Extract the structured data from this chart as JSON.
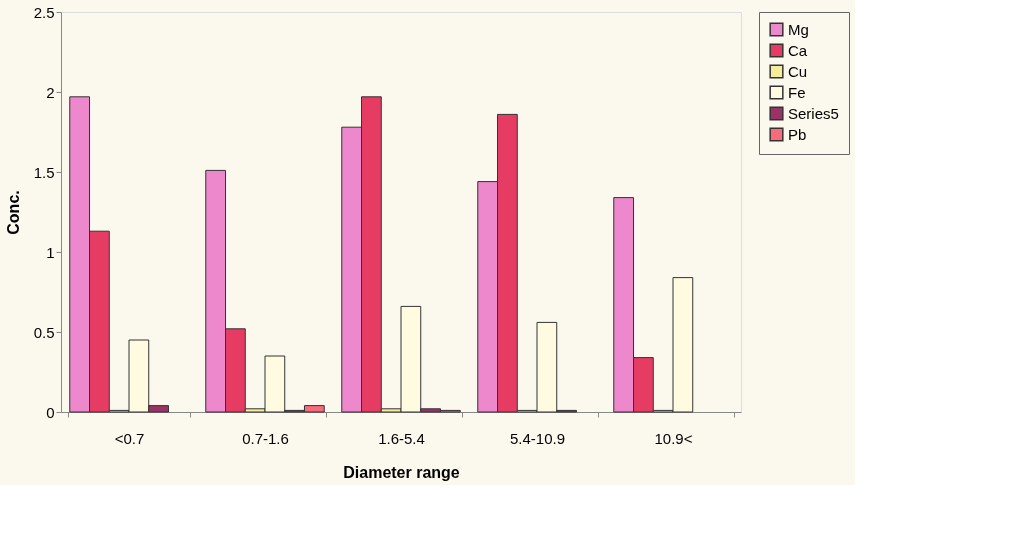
{
  "chart_data": {
    "type": "bar",
    "xlabel": "Diameter range",
    "ylabel": "Conc.",
    "categories": [
      "<0.7",
      "0.7-1.6",
      "1.6-5.4",
      "5.4-10.9",
      "10.9<"
    ],
    "series": [
      {
        "name": "Mg",
        "color": "#ee88cc",
        "values": [
          1.97,
          1.51,
          1.78,
          1.44,
          1.34
        ]
      },
      {
        "name": "Ca",
        "color": "#e63c64",
        "values": [
          1.13,
          0.52,
          1.97,
          1.86,
          0.34
        ]
      },
      {
        "name": "Cu",
        "color": "#f4ee9a",
        "values": [
          0.01,
          0.02,
          0.02,
          0.01,
          0.01
        ]
      },
      {
        "name": "Fe",
        "color": "#fffbe0",
        "values": [
          0.45,
          0.35,
          0.66,
          0.56,
          0.84
        ]
      },
      {
        "name": "Series5",
        "color": "#993366",
        "values": [
          0.04,
          0.01,
          0.02,
          0.01,
          0
        ]
      },
      {
        "name": "Pb",
        "color": "#f76b7a",
        "values": [
          0,
          0.04,
          0.01,
          0,
          0
        ]
      }
    ],
    "ylim": [
      0,
      2.5
    ],
    "yticks": [
      0,
      0.5,
      1,
      1.5,
      2,
      2.5
    ],
    "legend": "right",
    "grid": false
  }
}
